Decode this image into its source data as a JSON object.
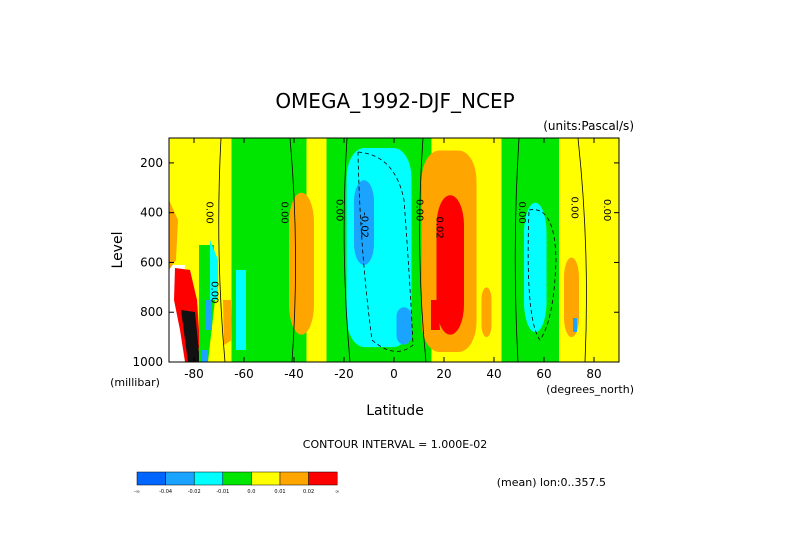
{
  "chart_data": {
    "type": "heatmap",
    "title": "OMEGA_1992-DJF_NCEP",
    "units_label": "(units:Pascal/s)",
    "xlabel": "Latitude",
    "x_unit_label": "(degrees_north)",
    "ylabel": "Level",
    "y_unit_label": "(millibar)",
    "xlim": [
      -90,
      90
    ],
    "ylim": [
      1000,
      100
    ],
    "x_ticks": [
      -80,
      -60,
      -40,
      -20,
      0,
      20,
      40,
      60,
      80
    ],
    "y_ticks": [
      200,
      400,
      600,
      800,
      1000
    ],
    "contour_interval_text": "CONTOUR INTERVAL = 1.000E-02",
    "mean_text": "(mean) lon:0..357.5",
    "contour_labels": [
      {
        "text": "0.00",
        "lat": -75,
        "lev": 400
      },
      {
        "text": "0.00",
        "lat": -73,
        "lev": 720
      },
      {
        "text": "0.00",
        "lat": -45,
        "lev": 400
      },
      {
        "text": "0.00",
        "lat": -23,
        "lev": 390
      },
      {
        "text": "-0.02",
        "lat": -13,
        "lev": 450
      },
      {
        "text": "0.00",
        "lat": 9,
        "lev": 390
      },
      {
        "text": "0.02",
        "lat": 17,
        "lev": 460
      },
      {
        "text": "0.00",
        "lat": 50,
        "lev": 400
      },
      {
        "text": "0.00",
        "lat": 71,
        "lev": 380
      },
      {
        "text": "0.00",
        "lat": 84,
        "lev": 390
      }
    ],
    "colorbar": {
      "colors": [
        "#0066ff",
        "#1aa3ff",
        "#00ffff",
        "#00e600",
        "#ffff00",
        "#ffa500",
        "#ff0000"
      ],
      "labels": [
        "-∞",
        "-0.04",
        "-0.02",
        "-0.01",
        "0.0",
        "0.01",
        "0.02",
        "∞"
      ]
    },
    "field_regions": [
      {
        "level": "green",
        "color": "#00e600",
        "lat": [
          -65,
          -35
        ],
        "lev": [
          100,
          1000
        ]
      },
      {
        "level": "green",
        "color": "#00e600",
        "lat": [
          -27,
          15
        ],
        "lev": [
          100,
          1000
        ]
      },
      {
        "level": "cyan",
        "color": "#00ffff",
        "lat": [
          -19,
          7
        ],
        "lev": [
          140,
          940
        ]
      },
      {
        "level": "blue",
        "color": "#1aa3ff",
        "lat": [
          -16,
          -8
        ],
        "lev": [
          270,
          610
        ]
      },
      {
        "level": "blue",
        "color": "#1aa3ff",
        "lat": [
          1,
          7
        ],
        "lev": [
          780,
          930
        ]
      },
      {
        "level": "orange",
        "color": "#ffa500",
        "lat": [
          11,
          33
        ],
        "lev": [
          150,
          960
        ]
      },
      {
        "level": "red",
        "color": "#ff0000",
        "lat": [
          17,
          28
        ],
        "lev": [
          330,
          890
        ]
      },
      {
        "level": "green",
        "color": "#00e600",
        "lat": [
          43,
          66
        ],
        "lev": [
          100,
          1000
        ]
      },
      {
        "level": "cyan",
        "color": "#00ffff",
        "lat": [
          52,
          61
        ],
        "lev": [
          360,
          880
        ]
      },
      {
        "level": "orange",
        "color": "#ffa500",
        "lat": [
          -42,
          -32
        ],
        "lev": [
          320,
          890
        ]
      },
      {
        "level": "orange",
        "color": "#ffa500",
        "lat": [
          35,
          39
        ],
        "lev": [
          700,
          900
        ]
      },
      {
        "level": "orange",
        "color": "#ffa500",
        "lat": [
          68,
          74
        ],
        "lev": [
          580,
          900
        ]
      }
    ]
  }
}
